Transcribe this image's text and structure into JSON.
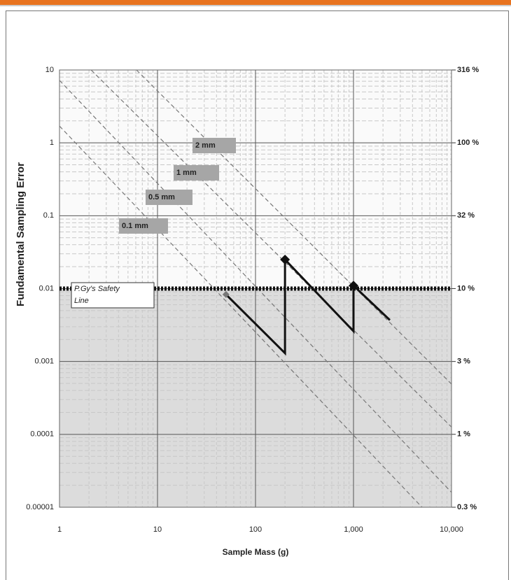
{
  "chart_data": {
    "type": "line",
    "xlabel": "Sample Mass (g)",
    "ylabel": "Fundamental Sampling Error",
    "log_x": true,
    "log_y": true,
    "grid": true,
    "xlim": [
      1,
      10000
    ],
    "xticks": [
      1,
      10,
      100,
      {
        "value": 1000,
        "label": "1,000"
      },
      {
        "value": 10000,
        "label": "10,000"
      }
    ],
    "ylim": [
      1e-05,
      10
    ],
    "yticks": [
      10,
      1,
      0.1,
      0.01,
      0.001,
      0.0001,
      {
        "value": 1e-05,
        "label": "0.00001"
      }
    ],
    "y2lim": [
      0.316,
      316
    ],
    "y2ticks": [
      {
        "value": 316,
        "label": "316 %"
      },
      {
        "value": 100,
        "label": "100 %"
      },
      {
        "value": 31.6,
        "label": "32  %"
      },
      {
        "value": 10,
        "label": "10  %"
      },
      {
        "value": 3.16,
        "label": "3  %"
      },
      {
        "value": 1,
        "label": "1 %"
      },
      {
        "value": 0.316,
        "label": "0.3  %"
      }
    ],
    "series": [
      {
        "name": "2 mm",
        "color": "#777777",
        "x": [
          6.1,
          10000
        ],
        "y": [
          10,
          0.00049
        ]
      },
      {
        "name": "1 mm",
        "color": "#777777",
        "x": [
          2.1,
          10000
        ],
        "y": [
          10,
          0.000126
        ]
      },
      {
        "name": "0.5 mm",
        "color": "#777777",
        "x": [
          1,
          10000
        ],
        "y": [
          7.2,
          1.6e-05
        ]
      },
      {
        "name": "0.1 mm",
        "color": "#777777",
        "x": [
          1,
          5000
        ],
        "y": [
          1.7,
          1e-05
        ]
      }
    ],
    "safety_line": {
      "label": "P.Gy's Safety Line",
      "value": 0.01,
      "color": "#111111"
    },
    "protocol": {
      "color": "#111111",
      "x": [
        50,
        200,
        200,
        1000,
        1000,
        2350
      ],
      "y": [
        0.0083,
        0.0013,
        0.025,
        0.0026,
        0.011,
        0.0037
      ]
    }
  }
}
